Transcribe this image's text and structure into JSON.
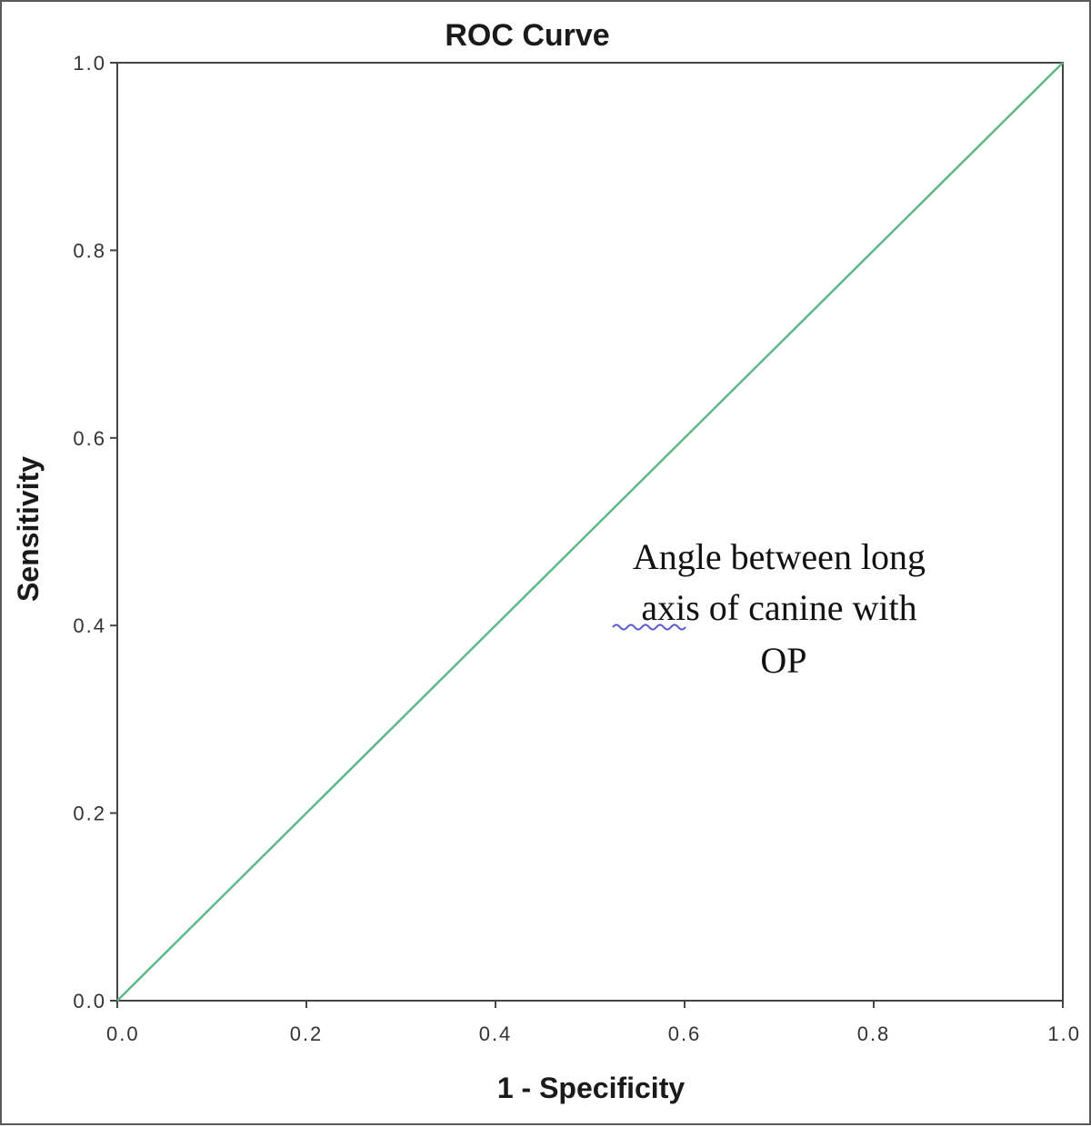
{
  "chart_data": {
    "type": "line",
    "title": "ROC Curve",
    "xlabel": "1 - Specificity",
    "ylabel": "Sensitivity",
    "xlim": [
      0.0,
      1.0
    ],
    "ylim": [
      0.0,
      1.0
    ],
    "xticks": [
      "0.0",
      "0.2",
      "0.4",
      "0.6",
      "0.8",
      "1.0"
    ],
    "yticks": [
      "0.0",
      "0.2",
      "0.4",
      "0.6",
      "0.8",
      "1.0"
    ],
    "grid": false,
    "series": [
      {
        "color": "#5fb88a",
        "x": [
          0.0,
          1.0
        ],
        "y": [
          0.0,
          1.0
        ]
      }
    ],
    "annotation": {
      "lines": [
        "Angle between long",
        "axis of canine with",
        "OP"
      ]
    }
  }
}
